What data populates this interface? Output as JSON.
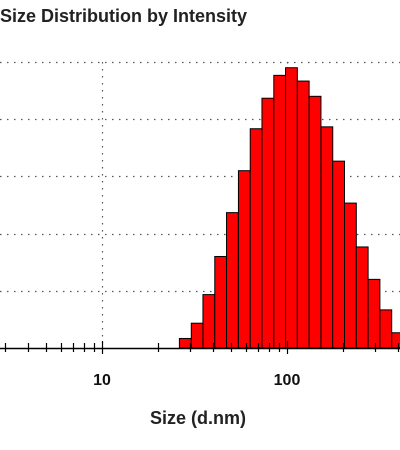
{
  "chart_data": {
    "type": "bar",
    "title": "Size Distribution by Intensity",
    "xlabel": "Size (d.nm)",
    "ylabel": "",
    "x_scale": "log",
    "xlim": [
      3,
      400
    ],
    "ylim": [
      0,
      15
    ],
    "x_ticks": [
      10,
      100
    ],
    "x_tick_labels": [
      "10",
      "100"
    ],
    "y_gridlines": [
      3,
      6,
      9,
      12,
      15
    ],
    "grid": true,
    "bar_color": "#ff0000",
    "bar_edge_color": "#000000",
    "bins": [
      {
        "x": 28.2,
        "value": 0.5
      },
      {
        "x": 32.7,
        "value": 1.3
      },
      {
        "x": 37.8,
        "value": 2.8
      },
      {
        "x": 43.8,
        "value": 4.8
      },
      {
        "x": 50.7,
        "value": 7.1
      },
      {
        "x": 58.8,
        "value": 9.3
      },
      {
        "x": 68.1,
        "value": 11.5
      },
      {
        "x": 78.8,
        "value": 13.1
      },
      {
        "x": 91.3,
        "value": 14.3
      },
      {
        "x": 105.7,
        "value": 14.7
      },
      {
        "x": 122.4,
        "value": 14.0
      },
      {
        "x": 141.8,
        "value": 13.2
      },
      {
        "x": 164.2,
        "value": 11.6
      },
      {
        "x": 190.1,
        "value": 9.8
      },
      {
        "x": 220.2,
        "value": 7.6
      },
      {
        "x": 255.0,
        "value": 5.3
      },
      {
        "x": 295.3,
        "value": 3.6
      },
      {
        "x": 342.0,
        "value": 2.0
      },
      {
        "x": 396.1,
        "value": 0.8
      }
    ]
  }
}
